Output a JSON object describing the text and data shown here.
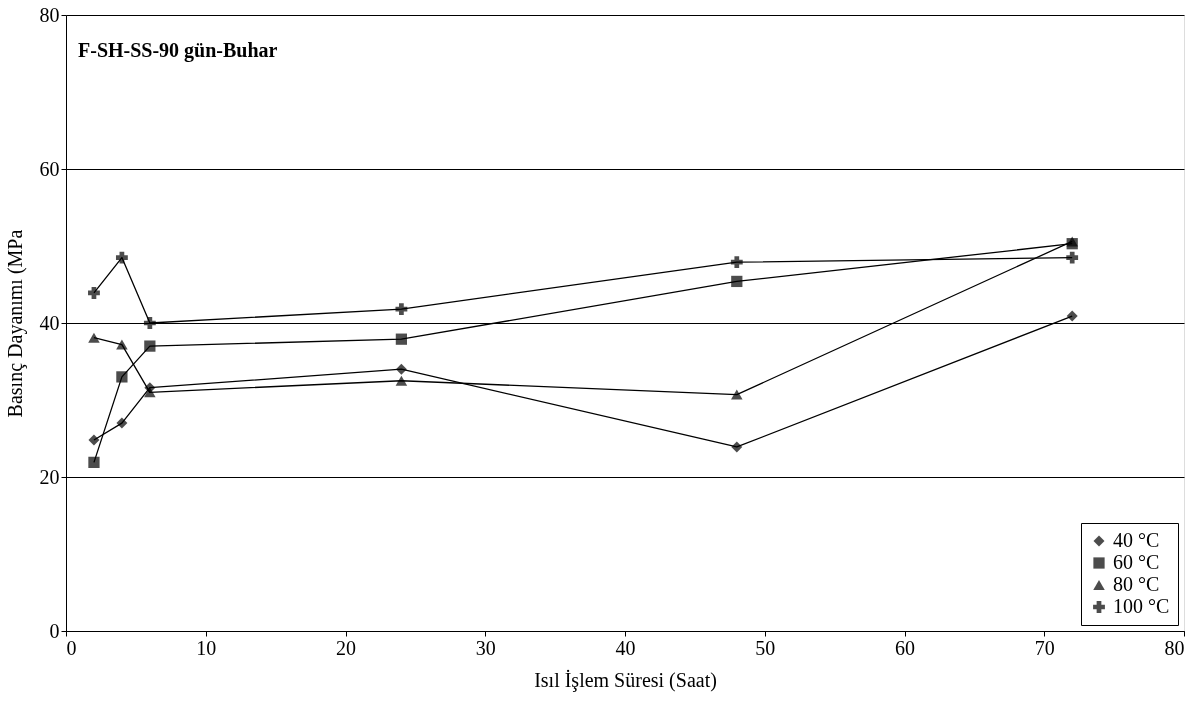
{
  "chart_data": {
    "type": "line",
    "title": "F-SH-SS-90 gün-Buhar",
    "xlabel": "Isıl İşlem Süresi (Saat)",
    "ylabel": "Basınç Dayanımı (MPa",
    "x": [
      2,
      4,
      6,
      24,
      48,
      72
    ],
    "series": [
      {
        "name": "40 °C",
        "color": "#000000",
        "marker": "diamond",
        "values": [
          24.8,
          27.0,
          31.6,
          34.0,
          23.9,
          40.9
        ]
      },
      {
        "name": "60 °C",
        "color": "#000000",
        "marker": "square",
        "values": [
          21.9,
          33.0,
          37.0,
          37.9,
          45.4,
          50.3
        ]
      },
      {
        "name": "80 °C",
        "color": "#000000",
        "marker": "triangle",
        "values": [
          38.1,
          37.2,
          31.0,
          32.5,
          30.7,
          50.6
        ]
      },
      {
        "name": "100 °C",
        "color": "#000000",
        "marker": "cross",
        "values": [
          43.9,
          48.5,
          40.0,
          41.8,
          47.9,
          48.5
        ]
      }
    ],
    "xlim": [
      0,
      80
    ],
    "xticks": [
      0,
      10,
      20,
      30,
      40,
      50,
      60,
      70,
      80
    ],
    "ylim": [
      0,
      80
    ],
    "yticks": [
      0,
      20,
      40,
      60,
      80
    ],
    "grid": "y",
    "legend": "bottom right",
    "line_style": "solid"
  }
}
